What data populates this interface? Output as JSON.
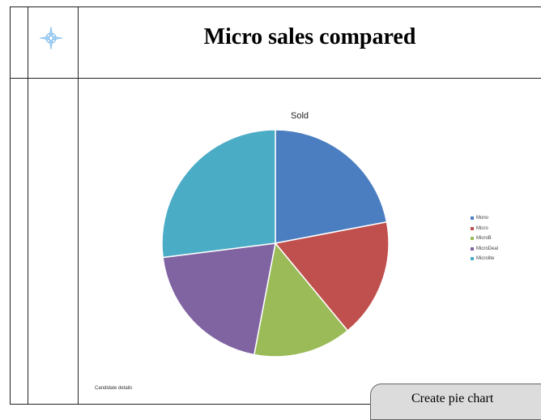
{
  "header": {
    "title": "Micro sales compared",
    "logo_icon": "compass-star-icon"
  },
  "chart_data": {
    "type": "pie",
    "title": "Sold",
    "categories": [
      "Mono",
      "Micro",
      "MicroB",
      "MicroDeal",
      "Microlite"
    ],
    "values": [
      22,
      17,
      14,
      20,
      27
    ],
    "colors": [
      "#4a7ec0",
      "#c0504d",
      "#9bbb59",
      "#8064a2",
      "#4bacc6"
    ],
    "start_angle_deg": 0,
    "legend_position": "right"
  },
  "footnote": "Candidate details",
  "tooltip": {
    "text": "Create pie chart"
  }
}
